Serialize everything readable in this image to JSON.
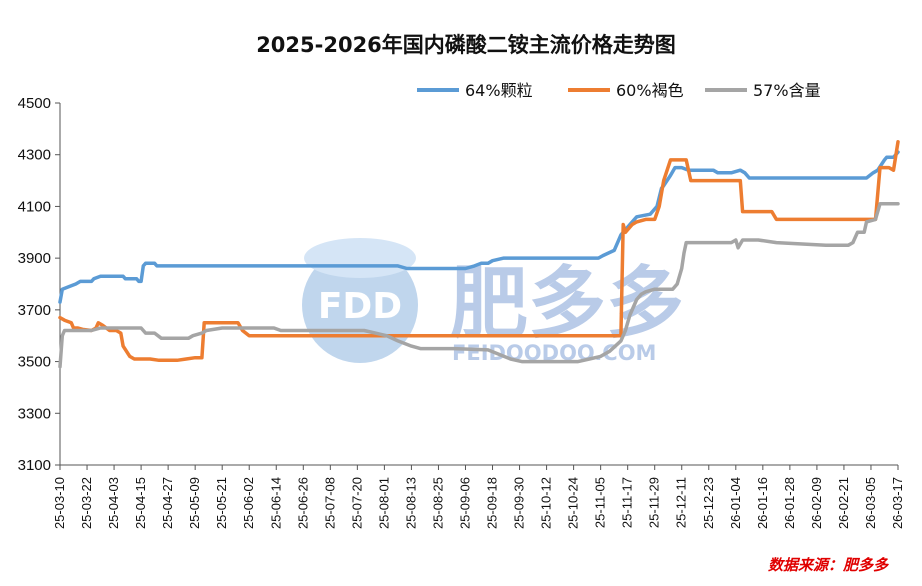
{
  "chart_data": {
    "type": "line",
    "title": "2025-2026年国内磷酸二铵主流价格走势图",
    "xlabel": "",
    "ylabel": "",
    "ylim": [
      3100,
      4500
    ],
    "yticks": [
      3100,
      3300,
      3500,
      3700,
      3900,
      4100,
      4300,
      4500
    ],
    "grid": false,
    "legend_position": "top-right",
    "x_tick_labels": [
      "25-03-10",
      "25-03-22",
      "25-04-03",
      "25-04-15",
      "25-04-27",
      "25-05-09",
      "25-05-21",
      "25-06-02",
      "25-06-14",
      "25-06-26",
      "25-07-08",
      "25-07-20",
      "25-08-01",
      "25-08-13",
      "25-08-25",
      "25-09-06",
      "25-09-18",
      "25-09-30",
      "25-10-12",
      "25-10-24",
      "25-11-05",
      "25-11-17",
      "25-11-29",
      "25-12-11",
      "25-12-23",
      "26-01-04",
      "26-01-16",
      "26-01-28",
      "26-02-09",
      "26-02-21",
      "26-03-05",
      "26-03-17"
    ],
    "x_domain_days": [
      0,
      372
    ],
    "series": [
      {
        "name": "64%颗粒",
        "color": "#5b9bd5",
        "points": [
          [
            0,
            3730
          ],
          [
            1,
            3780
          ],
          [
            4,
            3790
          ],
          [
            7,
            3800
          ],
          [
            9,
            3810
          ],
          [
            14,
            3810
          ],
          [
            15,
            3820
          ],
          [
            18,
            3830
          ],
          [
            28,
            3830
          ],
          [
            29,
            3820
          ],
          [
            34,
            3820
          ],
          [
            35,
            3810
          ],
          [
            36,
            3810
          ],
          [
            37,
            3870
          ],
          [
            38,
            3880
          ],
          [
            42,
            3880
          ],
          [
            43,
            3870
          ],
          [
            150,
            3870
          ],
          [
            154,
            3860
          ],
          [
            180,
            3860
          ],
          [
            184,
            3870
          ],
          [
            187,
            3880
          ],
          [
            190,
            3880
          ],
          [
            192,
            3890
          ],
          [
            197,
            3900
          ],
          [
            239,
            3900
          ],
          [
            241,
            3910
          ],
          [
            246,
            3930
          ],
          [
            249,
            3990
          ],
          [
            253,
            4030
          ],
          [
            256,
            4060
          ],
          [
            262,
            4070
          ],
          [
            265,
            4100
          ],
          [
            267,
            4170
          ],
          [
            268,
            4180
          ],
          [
            271,
            4220
          ],
          [
            273,
            4250
          ],
          [
            276,
            4250
          ],
          [
            279,
            4240
          ],
          [
            285,
            4240
          ],
          [
            288,
            4240
          ],
          [
            290,
            4240
          ],
          [
            292,
            4230
          ],
          [
            298,
            4230
          ],
          [
            302,
            4240
          ],
          [
            304,
            4230
          ],
          [
            306,
            4210
          ],
          [
            358,
            4210
          ],
          [
            361,
            4230
          ],
          [
            363,
            4240
          ],
          [
            366,
            4280
          ],
          [
            367,
            4290
          ],
          [
            370,
            4290
          ],
          [
            372,
            4310
          ]
        ]
      },
      {
        "name": "60%褐色",
        "color": "#ed7d31",
        "points": [
          [
            0,
            3670
          ],
          [
            2,
            3660
          ],
          [
            5,
            3650
          ],
          [
            6,
            3630
          ],
          [
            8,
            3630
          ],
          [
            10,
            3625
          ],
          [
            14,
            3620
          ],
          [
            16,
            3630
          ],
          [
            17,
            3650
          ],
          [
            19,
            3640
          ],
          [
            22,
            3620
          ],
          [
            25,
            3620
          ],
          [
            27,
            3610
          ],
          [
            28,
            3560
          ],
          [
            31,
            3520
          ],
          [
            33,
            3510
          ],
          [
            36,
            3510
          ],
          [
            38,
            3510
          ],
          [
            40,
            3510
          ],
          [
            44,
            3505
          ],
          [
            52,
            3505
          ],
          [
            56,
            3510
          ],
          [
            60,
            3515
          ],
          [
            63,
            3515
          ],
          [
            64,
            3650
          ],
          [
            75,
            3650
          ],
          [
            79,
            3650
          ],
          [
            81,
            3620
          ],
          [
            84,
            3600
          ],
          [
            106,
            3600
          ],
          [
            110,
            3600
          ],
          [
            249,
            3600
          ],
          [
            250,
            4030
          ],
          [
            251,
            4000
          ],
          [
            254,
            4030
          ],
          [
            256,
            4040
          ],
          [
            260,
            4050
          ],
          [
            264,
            4050
          ],
          [
            266,
            4100
          ],
          [
            268,
            4200
          ],
          [
            271,
            4280
          ],
          [
            278,
            4280
          ],
          [
            280,
            4200
          ],
          [
            284,
            4200
          ],
          [
            302,
            4200
          ],
          [
            303,
            4080
          ],
          [
            310,
            4080
          ],
          [
            316,
            4080
          ],
          [
            318,
            4050
          ],
          [
            340,
            4050
          ],
          [
            342,
            4050
          ],
          [
            348,
            4050
          ],
          [
            362,
            4050
          ],
          [
            364,
            4250
          ],
          [
            368,
            4250
          ],
          [
            370,
            4240
          ],
          [
            372,
            4350
          ]
        ]
      },
      {
        "name": "57%含量",
        "color": "#a5a5a5",
        "points": [
          [
            0,
            3480
          ],
          [
            1,
            3600
          ],
          [
            2,
            3620
          ],
          [
            8,
            3620
          ],
          [
            14,
            3620
          ],
          [
            18,
            3630
          ],
          [
            36,
            3630
          ],
          [
            38,
            3610
          ],
          [
            42,
            3610
          ],
          [
            45,
            3590
          ],
          [
            48,
            3590
          ],
          [
            53,
            3590
          ],
          [
            57,
            3590
          ],
          [
            59,
            3600
          ],
          [
            63,
            3610
          ],
          [
            65,
            3620
          ],
          [
            72,
            3630
          ],
          [
            85,
            3630
          ],
          [
            95,
            3630
          ],
          [
            98,
            3620
          ],
          [
            120,
            3620
          ],
          [
            135,
            3620
          ],
          [
            140,
            3610
          ],
          [
            145,
            3600
          ],
          [
            150,
            3580
          ],
          [
            156,
            3560
          ],
          [
            160,
            3550
          ],
          [
            175,
            3550
          ],
          [
            190,
            3545
          ],
          [
            200,
            3510
          ],
          [
            205,
            3500
          ],
          [
            210,
            3500
          ],
          [
            230,
            3500
          ],
          [
            235,
            3510
          ],
          [
            240,
            3520
          ],
          [
            244,
            3540
          ],
          [
            249,
            3580
          ],
          [
            251,
            3620
          ],
          [
            253,
            3680
          ],
          [
            256,
            3740
          ],
          [
            258,
            3760
          ],
          [
            260,
            3770
          ],
          [
            264,
            3780
          ],
          [
            272,
            3780
          ],
          [
            274,
            3800
          ],
          [
            276,
            3860
          ],
          [
            277,
            3920
          ],
          [
            278,
            3960
          ],
          [
            290,
            3960
          ],
          [
            298,
            3960
          ],
          [
            300,
            3970
          ],
          [
            301,
            3940
          ],
          [
            303,
            3970
          ],
          [
            310,
            3970
          ],
          [
            318,
            3960
          ],
          [
            340,
            3950
          ],
          [
            350,
            3950
          ],
          [
            352,
            3960
          ],
          [
            354,
            4000
          ],
          [
            357,
            4000
          ],
          [
            358,
            4040
          ],
          [
            362,
            4050
          ],
          [
            364,
            4110
          ],
          [
            372,
            4110
          ]
        ]
      }
    ],
    "annotations": {
      "source": "数据来源：肥多多"
    }
  },
  "watermark": {
    "logo_text": "FDD",
    "brand_text": "肥多多",
    "url_text": "FEIDOODOO.COM"
  }
}
